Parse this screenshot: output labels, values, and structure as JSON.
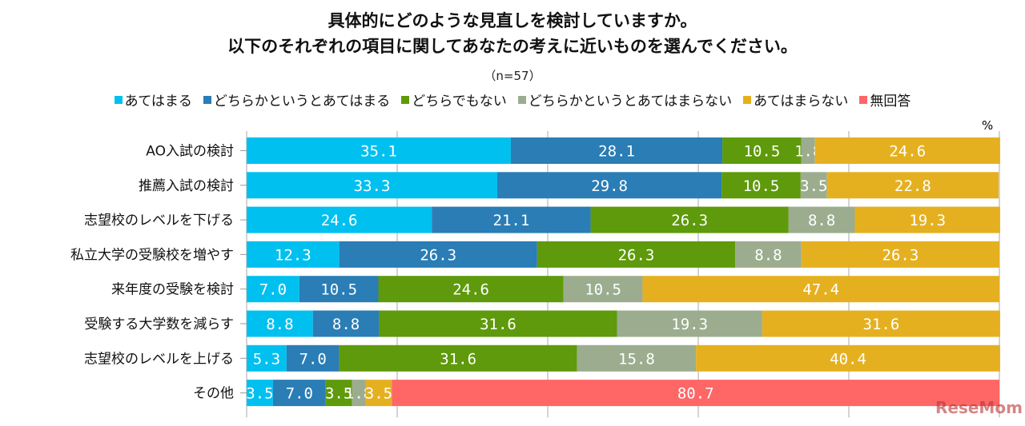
{
  "chart_data": {
    "type": "bar",
    "stacked": true,
    "orientation": "horizontal",
    "title": [
      "具体的にどのような見直しを検討していますか。",
      "以下のそれぞれの項目に関してあなたの考えに近いものを選んでください。"
    ],
    "subtitle": "（n=57）",
    "unit": "%",
    "xlim": [
      0,
      100
    ],
    "grid": true,
    "legend_position": "top",
    "categories": [
      "AO入試の検討",
      "推薦入試の検討",
      "志望校のレベルを下げる",
      "私立大学の受験校を増やす",
      "来年度の受験を検討",
      "受験する大学数を減らす",
      "志望校のレベルを上げる",
      "その他"
    ],
    "series": [
      {
        "name": "あてはまる",
        "color": "#00C0F0",
        "values": [
          35.1,
          33.3,
          24.6,
          12.3,
          7.0,
          8.8,
          5.3,
          3.5
        ]
      },
      {
        "name": "どちらかというとあてはまる",
        "color": "#2A7DB5",
        "values": [
          28.1,
          29.8,
          21.1,
          26.3,
          10.5,
          8.8,
          7.0,
          7.0
        ]
      },
      {
        "name": "どちらでもない",
        "color": "#5E9A0B",
        "values": [
          10.5,
          10.5,
          26.3,
          26.3,
          24.6,
          31.6,
          31.6,
          3.5
        ]
      },
      {
        "name": "どちらかというとあてはまらない",
        "color": "#9BAD8E",
        "values": [
          1.8,
          3.5,
          8.8,
          8.8,
          10.5,
          19.3,
          15.8,
          1.8
        ]
      },
      {
        "name": "あてはまらない",
        "color": "#E5B020",
        "values": [
          24.6,
          22.8,
          19.3,
          26.3,
          47.4,
          31.6,
          40.4,
          3.5
        ]
      },
      {
        "name": "無回答",
        "color": "#FF6666",
        "values": [
          0,
          0,
          0,
          0,
          0,
          0,
          0,
          80.7
        ]
      }
    ]
  },
  "watermark": "ReseMom"
}
